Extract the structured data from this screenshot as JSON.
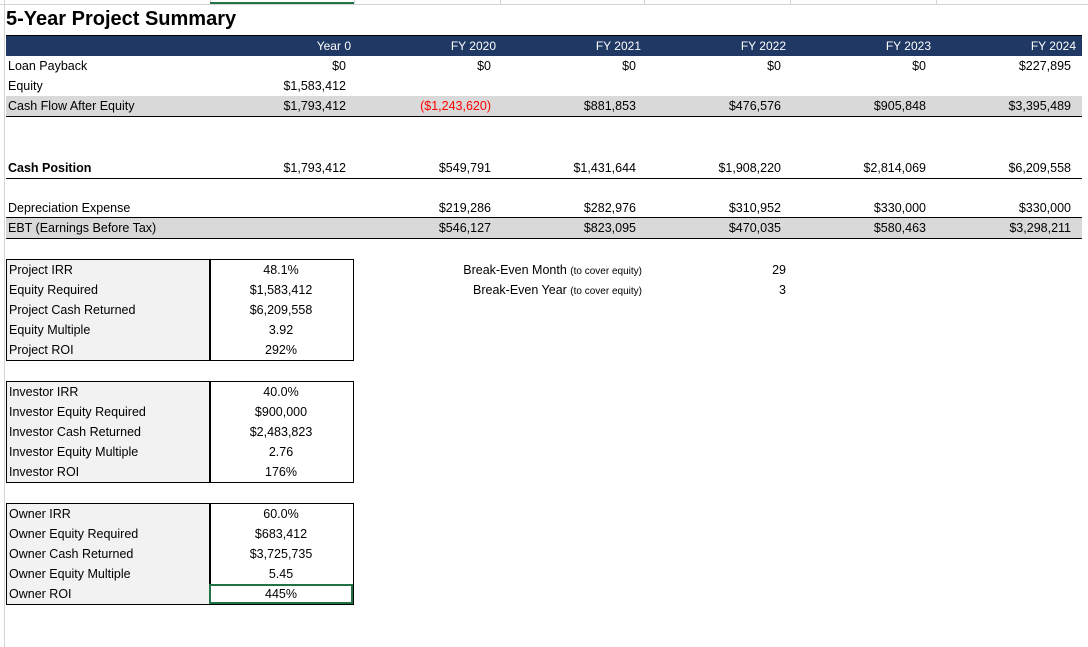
{
  "title": "5-Year Project Summary",
  "header": {
    "year0": "Year 0",
    "fy2020": "FY 2020",
    "fy2021": "FY 2021",
    "fy2022": "FY 2022",
    "fy2023": "FY 2023",
    "fy2024": "FY 2024"
  },
  "rows": {
    "loan_payback": {
      "label": "Loan Payback",
      "values": [
        "$0",
        "$0",
        "$0",
        "$0",
        "$0",
        "$227,895"
      ]
    },
    "equity": {
      "label": "Equity",
      "values": [
        "$1,583,412"
      ]
    },
    "cash_flow_after_equity": {
      "label": "Cash Flow After Equity",
      "values": [
        "$1,793,412",
        "($1,243,620)",
        "$881,853",
        "$476,576",
        "$905,848",
        "$3,395,489"
      ]
    },
    "cash_position": {
      "label": "Cash Position",
      "values": [
        "$1,793,412",
        "$549,791",
        "$1,431,644",
        "$1,908,220",
        "$2,814,069",
        "$6,209,558"
      ]
    },
    "depreciation_expense": {
      "label": "Depreciation Expense",
      "values": [
        "$219,286",
        "$282,976",
        "$310,952",
        "$330,000",
        "$330,000"
      ]
    },
    "ebt": {
      "label": "EBT (Earnings Before Tax)",
      "values": [
        "$546,127",
        "$823,095",
        "$470,035",
        "$580,463",
        "$3,298,211"
      ]
    }
  },
  "project_box": [
    {
      "label": "Project IRR",
      "value": "48.1%"
    },
    {
      "label": "Equity Required",
      "value": "$1,583,412"
    },
    {
      "label": "Project Cash Returned",
      "value": "$6,209,558"
    },
    {
      "label": "Equity Multiple",
      "value": "3.92"
    },
    {
      "label": "Project ROI",
      "value": "292%"
    }
  ],
  "investor_box": [
    {
      "label": "Investor IRR",
      "value": "40.0%"
    },
    {
      "label": "Investor Equity Required",
      "value": "$900,000"
    },
    {
      "label": "Investor Cash Returned",
      "value": "$2,483,823"
    },
    {
      "label": "Investor Equity Multiple",
      "value": "2.76"
    },
    {
      "label": "Investor ROI",
      "value": "176%"
    }
  ],
  "owner_box": [
    {
      "label": "Owner IRR",
      "value": "60.0%"
    },
    {
      "label": "Owner Equity Required",
      "value": "$683,412"
    },
    {
      "label": "Owner Cash Returned",
      "value": "$3,725,735"
    },
    {
      "label": "Owner Equity Multiple",
      "value": "5.45"
    },
    {
      "label": "Owner ROI",
      "value": "445%"
    }
  ],
  "break_even": {
    "month_label": "Break-Even Month",
    "month_note": "(to cover equity)",
    "month_value": "29",
    "year_label": "Break-Even Year",
    "year_note": "(to cover equity)",
    "year_value": "3"
  },
  "colors": {
    "header_bg": "#1f3864",
    "negative": "#ff0000",
    "row_shade": "#d9d9d9",
    "selection": "#217346"
  }
}
